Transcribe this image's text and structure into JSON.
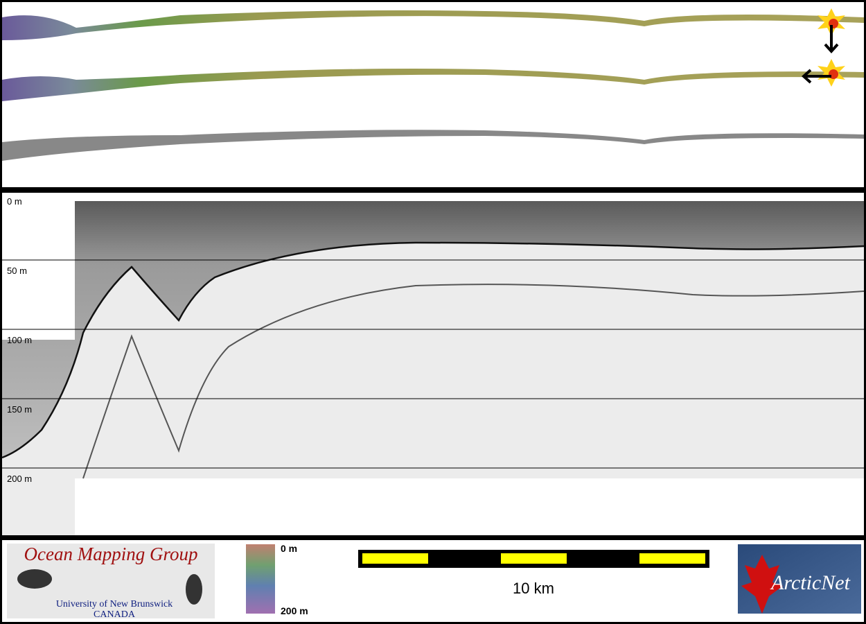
{
  "profile": {
    "depth_labels": [
      "0 m",
      "50 m",
      "100 m",
      "150 m",
      "200 m"
    ]
  },
  "legend": {
    "top": "0 m",
    "bottom": "200 m"
  },
  "scale_bar": {
    "label": "10 km"
  },
  "logos": {
    "omg_title": "Ocean Mapping Group",
    "omg_university": "University of New Brunswick",
    "omg_country": "CANADA",
    "arcticnet": "ArcticNet"
  }
}
